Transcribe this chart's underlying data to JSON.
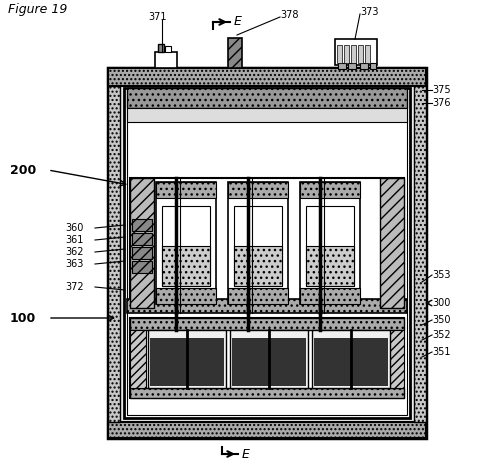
{
  "title": "Figure 19",
  "bg_color": "#ffffff",
  "labels": {
    "figure": "Figure 19",
    "E_top": "E",
    "E_bottom": "E",
    "n100": "100",
    "n200": "200",
    "n300": "300",
    "n350": "350",
    "n351": "351",
    "n352": "352",
    "n353": "353",
    "n360": "360",
    "n361": "361",
    "n362": "362",
    "n363": "363",
    "n371": "371",
    "n372": "372",
    "n373": "373",
    "n375": "375",
    "n376": "376",
    "n378": "378"
  }
}
